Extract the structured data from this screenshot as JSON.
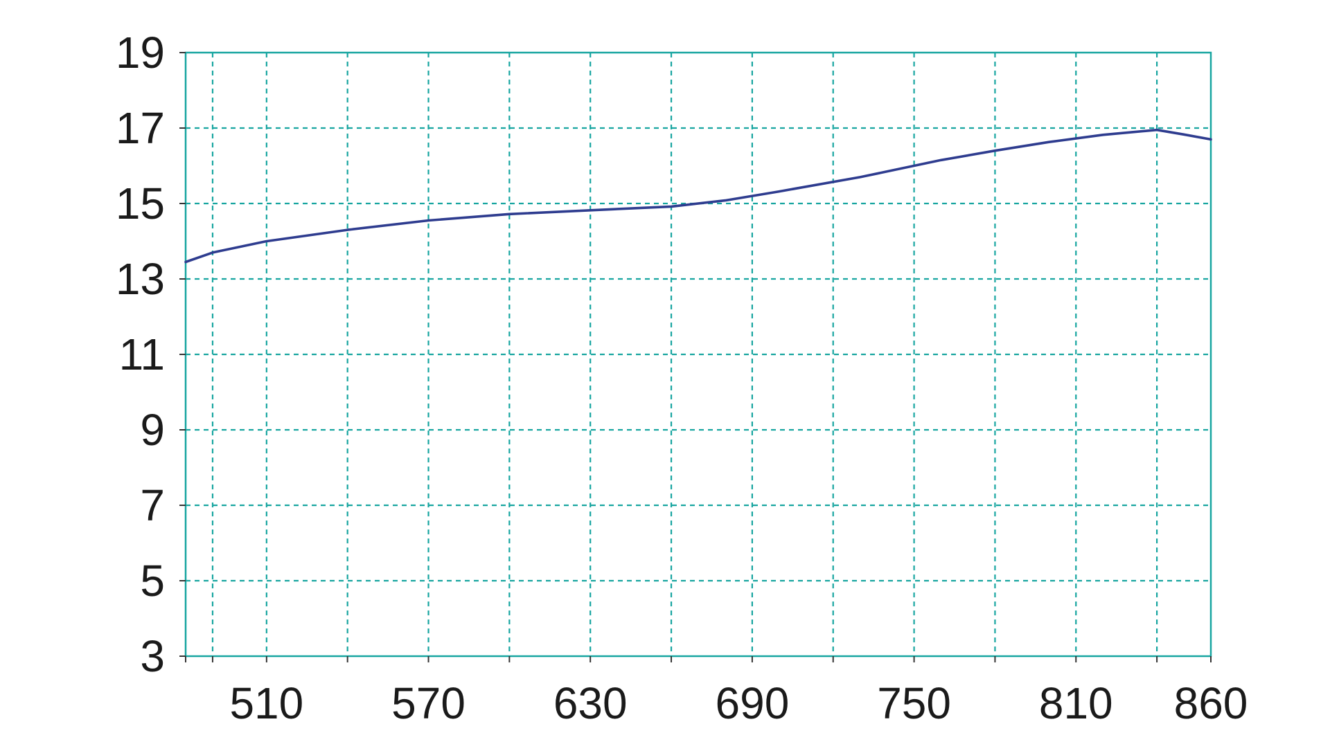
{
  "chart_data": {
    "type": "line",
    "title": "",
    "xlabel": "",
    "ylabel": "",
    "xlim": [
      480,
      860
    ],
    "ylim": [
      3,
      19
    ],
    "x_ticks": [
      510,
      570,
      630,
      690,
      750,
      810,
      860
    ],
    "x_minor_ticks": [
      490,
      540,
      600,
      660,
      720,
      780,
      840
    ],
    "y_ticks": [
      3,
      5,
      7,
      9,
      11,
      13,
      15,
      17,
      19
    ],
    "grid": true,
    "colors": {
      "line": "#2e3c8f",
      "grid": "#17a5a0",
      "frame": "#17a5a0",
      "axis": "#333333"
    },
    "series": [
      {
        "x": [
          480,
          490,
          510,
          540,
          570,
          600,
          630,
          660,
          680,
          690,
          700,
          730,
          760,
          780,
          800,
          820,
          840,
          850,
          860
        ],
        "values": [
          13.45,
          13.7,
          14.0,
          14.3,
          14.55,
          14.72,
          14.82,
          14.92,
          15.08,
          15.2,
          15.32,
          15.7,
          16.15,
          16.4,
          16.63,
          16.82,
          16.95,
          16.83,
          16.7
        ]
      }
    ]
  }
}
